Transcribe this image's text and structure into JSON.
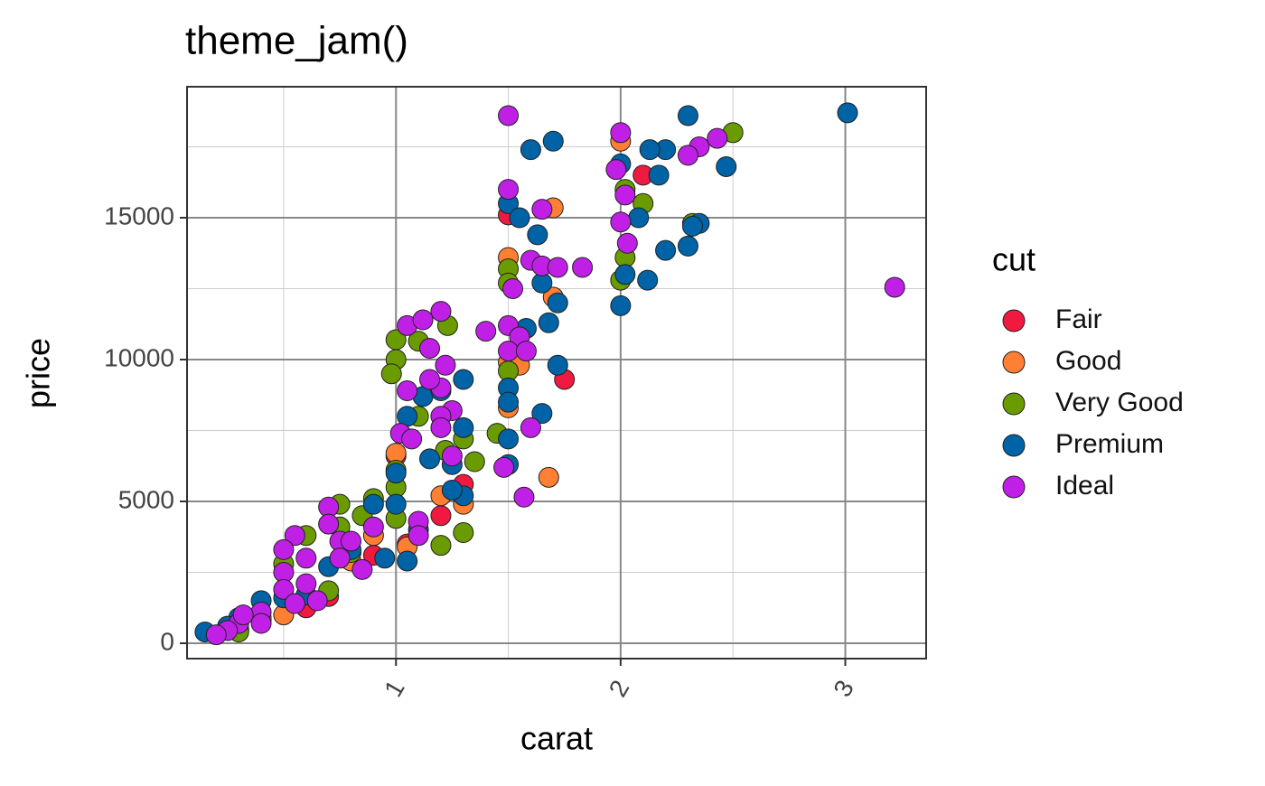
{
  "chart_data": {
    "type": "scatter",
    "title": "theme_jam()",
    "x_label": "carat",
    "y_label": "price",
    "legend_title": "cut",
    "legend_position": "right",
    "grid": true,
    "xlim": [
      0.07,
      3.36
    ],
    "ylim": [
      -541,
      19618
    ],
    "xticks": [
      1,
      2,
      3
    ],
    "yticks": [
      0,
      5000,
      10000,
      15000
    ],
    "xminor": [
      0.5,
      1.5,
      2.5
    ],
    "yminor": [
      2500,
      7500,
      12500,
      17500
    ],
    "series": [
      {
        "name": "Fair",
        "color": "#f0193f",
        "x": [
          0.9,
          0.7,
          0.6,
          1.3,
          1.5,
          1.75,
          2.1,
          1.0,
          1.05,
          0.3,
          0.4,
          1.2
        ],
        "values": [
          3100,
          1650,
          1250,
          5600,
          15100,
          9300,
          16500,
          6600,
          3500,
          500,
          800,
          4500
        ]
      },
      {
        "name": "Good",
        "color": "#ff7f33",
        "x": [
          1.68,
          1.7,
          2.0,
          1.5,
          1.55,
          1.5,
          1.05,
          1.3,
          1.7,
          0.5,
          0.3,
          1.5,
          0.8,
          1.0,
          1.2,
          0.4,
          0.9
        ],
        "values": [
          5850,
          15350,
          17700,
          9900,
          9800,
          13600,
          3400,
          4900,
          12200,
          1000,
          450,
          8300,
          2900,
          6700,
          5200,
          900,
          3800
        ]
      },
      {
        "name": "Very Good",
        "color": "#6a9b00",
        "x": [
          2.5,
          2.1,
          2.02,
          2.02,
          2.0,
          1.5,
          1.5,
          1.1,
          1.0,
          1.0,
          0.98,
          1.23,
          1.5,
          1.45,
          1.3,
          1.35,
          1.22,
          1.2,
          1.3,
          1.0,
          1.0,
          1.0,
          0.9,
          0.85,
          0.75,
          0.75,
          0.8,
          0.6,
          0.7,
          0.5,
          0.25,
          0.3,
          2.32,
          1.1
        ],
        "values": [
          18000,
          15500,
          16000,
          13600,
          12800,
          13200,
          12700,
          10650,
          10700,
          10000,
          9500,
          11200,
          9600,
          7400,
          7200,
          6400,
          6800,
          3450,
          3900,
          5500,
          4400,
          6100,
          5100,
          4500,
          4900,
          4100,
          3200,
          3800,
          1850,
          2800,
          500,
          400,
          14800,
          8000
        ]
      },
      {
        "name": "Premium",
        "color": "#0063a6",
        "x": [
          3.01,
          2.3,
          2.2,
          2.13,
          2.47,
          2.0,
          2.17,
          1.6,
          1.7,
          1.5,
          1.55,
          2.08,
          2.35,
          2.32,
          1.63,
          2.2,
          2.3,
          2.02,
          1.65,
          2.12,
          1.72,
          2.0,
          1.58,
          1.68,
          1.72,
          1.5,
          1.65,
          1.5,
          1.5,
          1.5,
          1.12,
          1.05,
          1.3,
          1.3,
          1.15,
          1.25,
          1.3,
          1.25,
          1.0,
          1.0,
          0.95,
          1.05,
          0.9,
          0.6,
          0.5,
          0.4,
          0.3,
          0.25,
          0.15,
          0.7,
          0.8,
          1.2,
          1.1
        ],
        "values": [
          18700,
          18600,
          17400,
          17400,
          16800,
          16900,
          16500,
          17400,
          17700,
          15500,
          15000,
          15000,
          14800,
          14700,
          14400,
          13850,
          14000,
          13000,
          12700,
          12800,
          12000,
          11900,
          11100,
          11300,
          9800,
          9000,
          8100,
          8500,
          7200,
          6300,
          8700,
          8000,
          9300,
          7600,
          6500,
          6300,
          5200,
          5400,
          6000,
          4900,
          3000,
          2900,
          4900,
          1700,
          1600,
          1500,
          900,
          600,
          400,
          2700,
          3300,
          8900,
          4000
        ]
      },
      {
        "name": "Ideal",
        "color": "#c020e6",
        "x": [
          1.5,
          2.0,
          2.43,
          2.35,
          2.3,
          1.98,
          2.02,
          1.5,
          1.65,
          2.0,
          2.03,
          1.6,
          1.65,
          1.72,
          1.83,
          1.52,
          3.22,
          1.2,
          1.05,
          1.12,
          1.15,
          1.4,
          1.5,
          1.55,
          1.5,
          1.58,
          1.6,
          1.57,
          1.48,
          1.22,
          1.2,
          1.15,
          1.05,
          1.25,
          1.2,
          1.2,
          1.02,
          1.07,
          1.25,
          1.1,
          1.1,
          0.9,
          0.7,
          0.7,
          0.75,
          0.55,
          0.5,
          0.6,
          0.75,
          0.5,
          0.5,
          0.55,
          0.65,
          0.6,
          0.4,
          0.3,
          0.4,
          0.25,
          0.32,
          0.8,
          0.85,
          0.2
        ],
        "values": [
          18600,
          18000,
          17800,
          17500,
          17200,
          16700,
          15800,
          16000,
          15300,
          14850,
          14100,
          13500,
          13300,
          13250,
          13250,
          12500,
          12550,
          11700,
          11200,
          11400,
          10400,
          11000,
          11200,
          10800,
          10300,
          10300,
          7600,
          5150,
          6200,
          9800,
          9000,
          9300,
          8900,
          8200,
          8000,
          7600,
          7400,
          7200,
          6600,
          4300,
          3800,
          4100,
          4800,
          4200,
          3600,
          3800,
          3300,
          3000,
          3000,
          2500,
          1900,
          1400,
          1500,
          2100,
          1100,
          700,
          700,
          450,
          1000,
          3600,
          2600,
          300
        ]
      }
    ]
  }
}
